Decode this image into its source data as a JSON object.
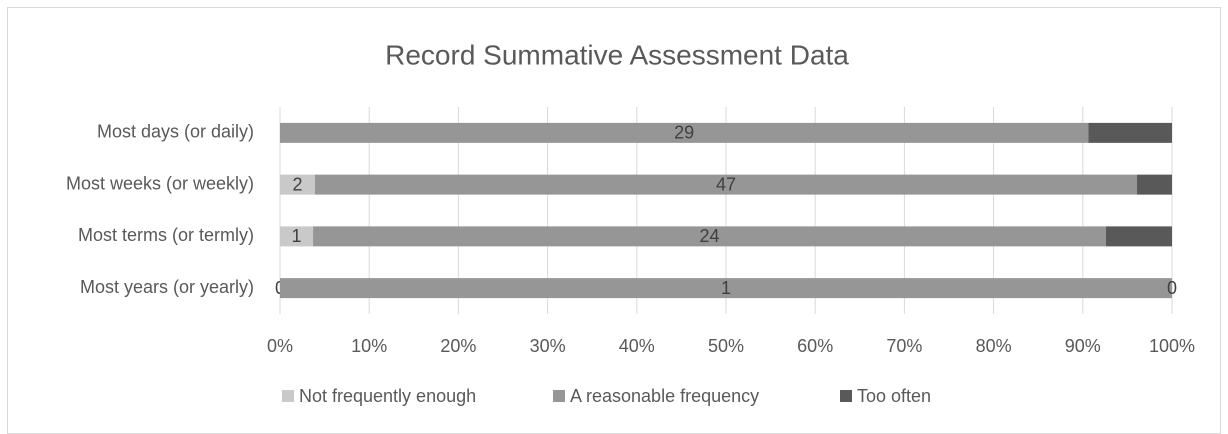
{
  "chart_data": {
    "type": "bar100h",
    "title": "Record Summative Assessment Data",
    "categories": [
      "Most days (or daily)",
      "Most weeks (or weekly)",
      "Most terms (or termly)",
      "Most years (or yearly)"
    ],
    "series": [
      {
        "name": "Not frequently enough",
        "color": "#c9c9c9",
        "values": [
          0,
          2,
          1,
          0
        ],
        "value_labels": [
          null,
          "2",
          "1",
          "0"
        ]
      },
      {
        "name": "A reasonable frequency",
        "color": "#969696",
        "values": [
          29,
          47,
          24,
          1
        ],
        "value_labels": [
          "29",
          "47",
          "24",
          "1"
        ]
      },
      {
        "name": "Too often",
        "color": "#595959",
        "values": [
          3,
          2,
          2,
          0
        ],
        "value_labels": [
          null,
          null,
          null,
          "0"
        ]
      }
    ],
    "xlim": [
      0,
      100
    ],
    "xticks": [
      {
        "value": 0,
        "label": "0%"
      },
      {
        "value": 10,
        "label": "10%"
      },
      {
        "value": 20,
        "label": "20%"
      },
      {
        "value": 30,
        "label": "30%"
      },
      {
        "value": 40,
        "label": "40%"
      },
      {
        "value": 50,
        "label": "50%"
      },
      {
        "value": 60,
        "label": "60%"
      },
      {
        "value": 70,
        "label": "70%"
      },
      {
        "value": 80,
        "label": "80%"
      },
      {
        "value": 90,
        "label": "90%"
      },
      {
        "value": 100,
        "label": "100%"
      }
    ],
    "grid": true,
    "legend": "bottom"
  }
}
